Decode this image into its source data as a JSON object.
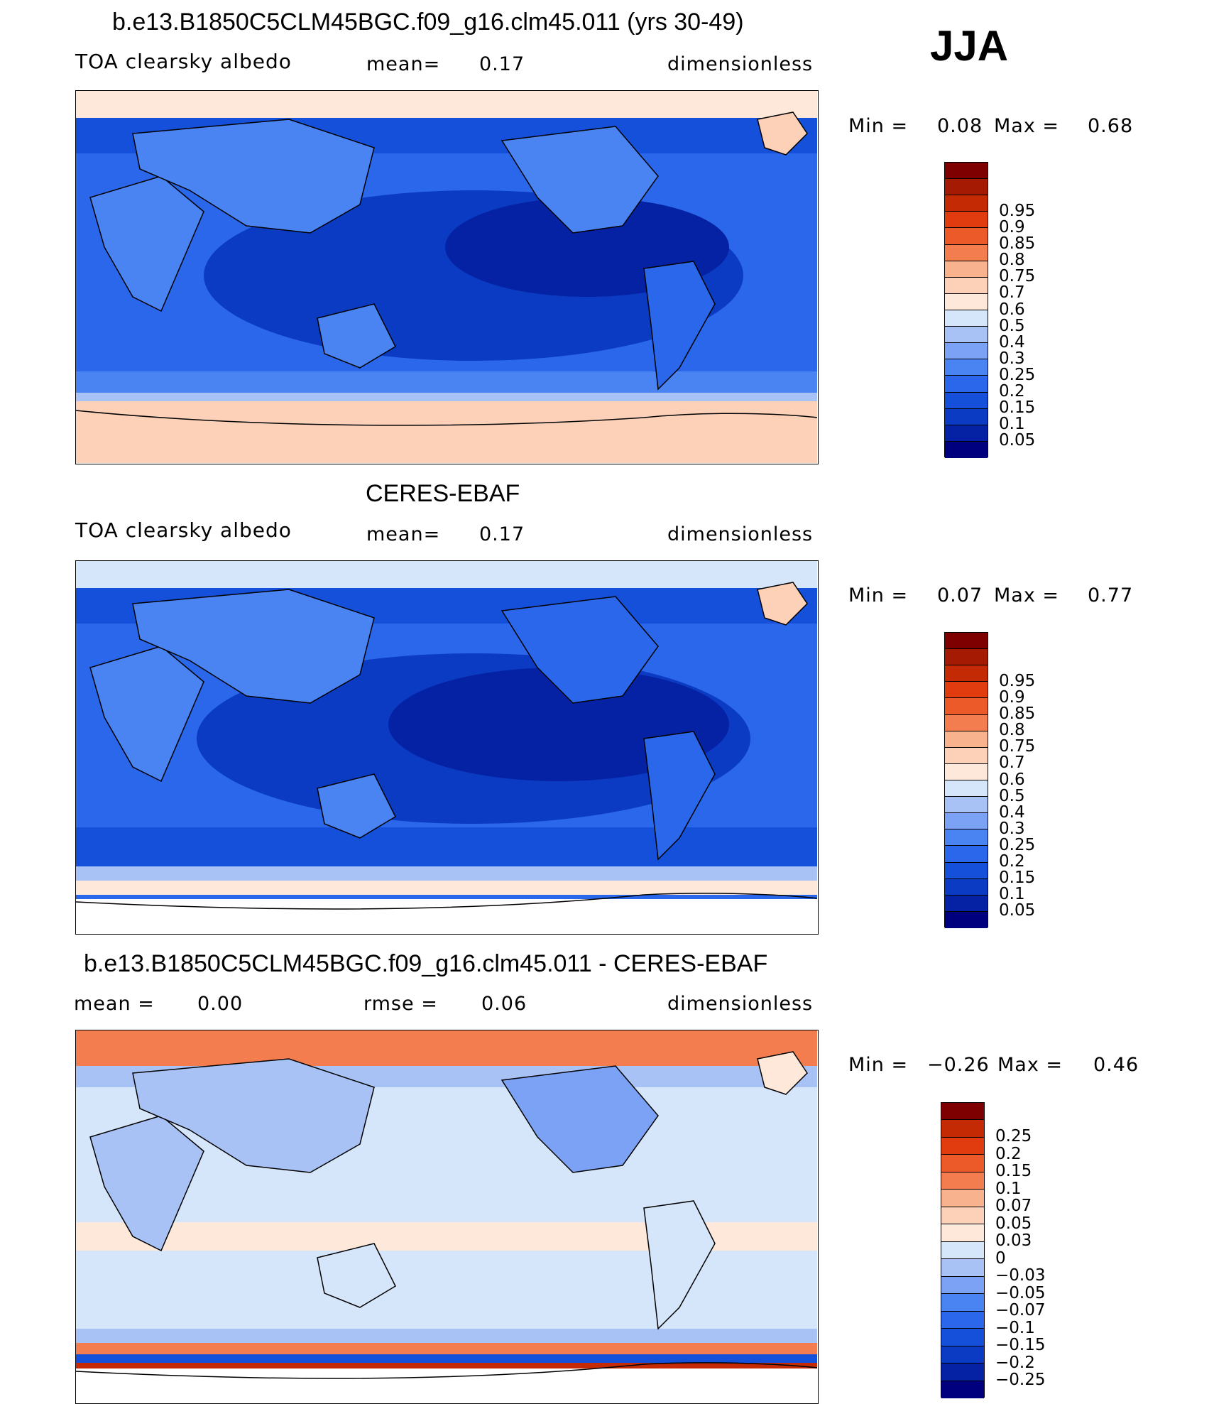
{
  "colors": {
    "sequential": [
      "#00007f",
      "#0522a4",
      "#0a3bc2",
      "#1550db",
      "#2a67ea",
      "#4a83f2",
      "#7ba2f4",
      "#a8c2f6",
      "#d6e6fa",
      "#fde8d9",
      "#fcd1b8",
      "#f9b28e",
      "#f47d50",
      "#ed5a2a",
      "#e03c10",
      "#c42b05",
      "#a51a02",
      "#7f0000"
    ],
    "diff": [
      "#00007f",
      "#0522a4",
      "#0a3bc2",
      "#1550db",
      "#2a67ea",
      "#4a83f2",
      "#7ba2f4",
      "#a8c2f6",
      "#d6e6fa",
      "#fde8d9",
      "#fcd1b8",
      "#f9b28e",
      "#f47d50",
      "#ed5a2a",
      "#e03c10",
      "#c42b05",
      "#7f0000"
    ]
  },
  "header": {
    "title": "b.e13.B1850C5CLM45BGC.f09_g16.clm45.011 (yrs 30-49)",
    "season": "JJA"
  },
  "panels": [
    {
      "title": "",
      "variable": "TOA clearsky albedo",
      "stat1_label": "mean=",
      "stat1_value": "0.17",
      "stat2_label": "",
      "stat2_value": "",
      "units": "dimensionless",
      "min_label": "Min =",
      "min_value": "0.08",
      "max_label": "Max =",
      "max_value": "0.68",
      "colorbar_levels": [
        "0.95",
        "0.9",
        "0.85",
        "0.8",
        "0.75",
        "0.7",
        "0.6",
        "0.5",
        "0.4",
        "0.3",
        "0.25",
        "0.2",
        "0.15",
        "0.1",
        "0.05"
      ]
    },
    {
      "title": "CERES-EBAF",
      "variable": "TOA clearsky albedo",
      "stat1_label": "mean=",
      "stat1_value": "0.17",
      "stat2_label": "",
      "stat2_value": "",
      "units": "dimensionless",
      "min_label": "Min =",
      "min_value": "0.07",
      "max_label": "Max =",
      "max_value": "0.77",
      "colorbar_levels": [
        "0.95",
        "0.9",
        "0.85",
        "0.8",
        "0.75",
        "0.7",
        "0.6",
        "0.5",
        "0.4",
        "0.3",
        "0.25",
        "0.2",
        "0.15",
        "0.1",
        "0.05"
      ]
    },
    {
      "title": "b.e13.B1850C5CLM45BGC.f09_g16.clm45.011 - CERES-EBAF",
      "variable": "",
      "stat1_label": "mean =",
      "stat1_value": "0.00",
      "stat2_label": "rmse =",
      "stat2_value": "0.06",
      "units": "dimensionless",
      "min_label": "Min =",
      "min_value": "−0.26",
      "max_label": "Max =",
      "max_value": "0.46",
      "colorbar_levels": [
        "0.25",
        "0.2",
        "0.15",
        "0.1",
        "0.07",
        "0.05",
        "0.03",
        "0",
        "−0.03",
        "−0.05",
        "−0.07",
        "−0.1",
        "−0.15",
        "−0.2",
        "−0.25"
      ]
    }
  ]
}
